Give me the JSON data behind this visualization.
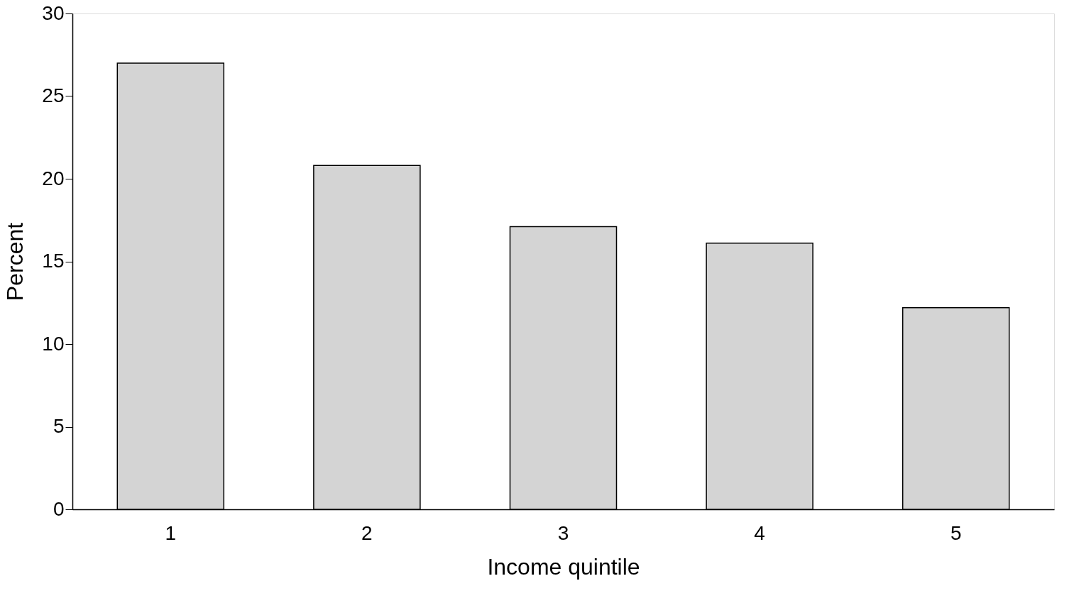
{
  "chart_data": {
    "type": "bar",
    "xlabel": "Income quintile",
    "ylabel": "Percent",
    "categories": [
      "1",
      "2",
      "3",
      "4",
      "5"
    ],
    "values": [
      27.0,
      20.8,
      17.1,
      16.1,
      12.2
    ],
    "color": "#d4d4d4",
    "ylim": [
      0,
      30
    ],
    "yticks": [
      0,
      5,
      10,
      15,
      20,
      25,
      30
    ],
    "grid": false
  }
}
